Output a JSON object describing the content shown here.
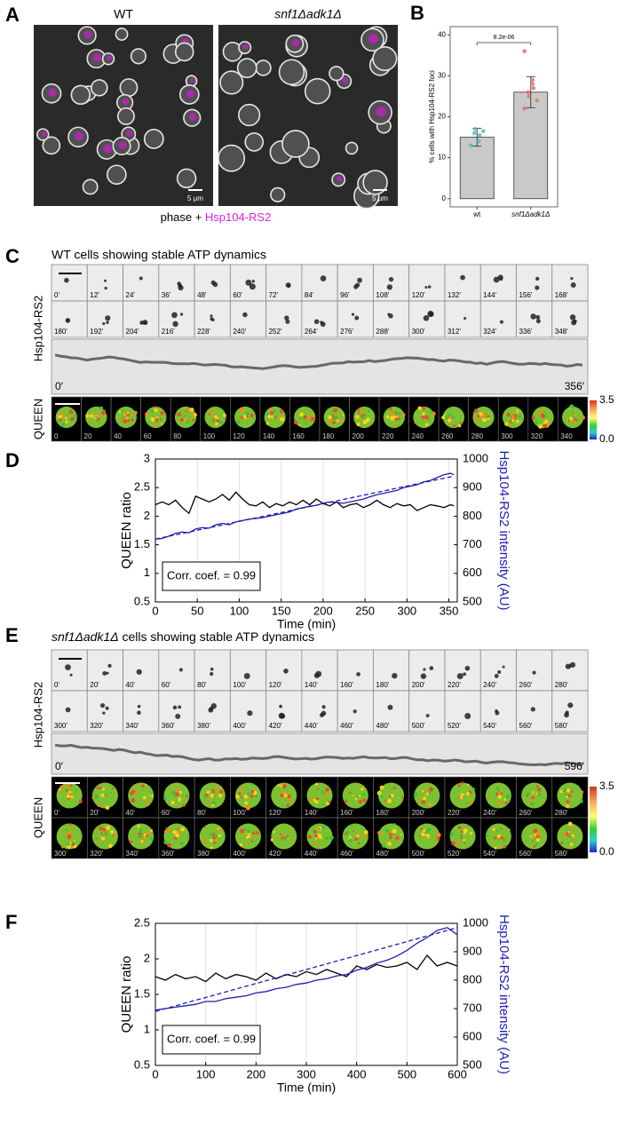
{
  "panel_labels": [
    "A",
    "B",
    "C",
    "D",
    "E",
    "F"
  ],
  "panel_a": {
    "labels": [
      "WT",
      "snf1Δadk1Δ"
    ],
    "scale_bar": "5 µm",
    "caption": "phase +",
    "caption_marker": "Hsp104-RS2"
  },
  "panel_c": {
    "title": "WT cells showing stable ATP dynamics",
    "row_labels": [
      "Hsp104-RS2",
      "QUEEN"
    ],
    "frames": [
      "0'",
      "12'",
      "24'",
      "36'",
      "48'",
      "60'",
      "72'",
      "84'",
      "96'",
      "108'",
      "120'",
      "132'",
      "144'",
      "156'",
      "168'",
      "180'",
      "192'",
      "204'",
      "216'",
      "228'",
      "240'",
      "252'",
      "264'",
      "276'",
      "288'",
      "300'",
      "312'",
      "324'",
      "336'",
      "348'"
    ],
    "kymo_start": "0′",
    "kymo_end": "356′",
    "queen_frames": [
      "0",
      "20",
      "40",
      "60",
      "80",
      "100",
      "120",
      "140",
      "160",
      "180",
      "200",
      "220",
      "240",
      "260",
      "280",
      "300",
      "320",
      "340"
    ],
    "colorbar_ticks": [
      3.5,
      {
        "value": 0,
        "label": "0.0"
      }
    ]
  },
  "panel_e": {
    "title_genotype": "snf1Δadk1Δ",
    "title_rest": " cells showing stable ATP dynamics",
    "row_labels": [
      "Hsp104-RS2",
      "QUEEN"
    ],
    "frames": [
      "0'",
      "20'",
      "40'",
      "60'",
      "80'",
      "100'",
      "120'",
      "140'",
      "160'",
      "180'",
      "200'",
      "220'",
      "240'",
      "260'",
      "280'",
      "300'",
      "320'",
      "340'",
      "360'",
      "380'",
      "400'",
      "420'",
      "440'",
      "460'",
      "480'",
      "500'",
      "520'",
      "540'",
      "560'",
      "580'"
    ],
    "kymo_start": "0′",
    "kymo_end": "596′",
    "queen_frames": [
      "0'",
      "20'",
      "40'",
      "60'",
      "80'",
      "100'",
      "120'",
      "140'",
      "160'",
      "180'",
      "200'",
      "220'",
      "240'",
      "260'",
      "280'",
      "300'",
      "320'",
      "340'",
      "360'",
      "380'",
      "400'",
      "420'",
      "440'",
      "460'",
      "480'",
      "500'",
      "520'",
      "540'",
      "560'",
      "580'"
    ],
    "colorbar_ticks": [
      3.5,
      {
        "value": 0,
        "label": "0.0"
      }
    ]
  },
  "chart_data": [
    {
      "type": "bar",
      "ylabel": "% cells with Hsp104-RS2 foci",
      "categories": [
        "wt",
        "snf1Δadk1Δ"
      ],
      "values": [
        15,
        26
      ],
      "errors": [
        2.2,
        3.8
      ],
      "points": [
        [
          13,
          14,
          15.5,
          16,
          17,
          16.5
        ],
        [
          36,
          28,
          27,
          26,
          25,
          24,
          22,
          29
        ]
      ],
      "point_colors": [
        "#5fb8b3",
        "#e07070"
      ],
      "color": "#c9c9c9",
      "annotation": "8.2e-06",
      "ylim": [
        -2,
        42
      ],
      "yticks": [
        0,
        10,
        20,
        30,
        40
      ]
    },
    {
      "type": "line",
      "xlabel": "Time (min)",
      "ylabel": "QUEEN ratio",
      "y2label": "Hsp104-RS2 intensity (AU)",
      "annotation": "Corr. coef. = 0.99",
      "grid": "x",
      "xlim": [
        0,
        360
      ],
      "xticks": [
        0,
        50,
        100,
        150,
        200,
        250,
        300,
        350
      ],
      "ylim": [
        0.5,
        3
      ],
      "yticks": [
        0.5,
        1,
        1.5,
        2,
        2.5,
        3
      ],
      "y2lim": [
        500,
        1000
      ],
      "y2ticks": [
        500,
        600,
        700,
        800,
        900,
        1000
      ],
      "x": [
        0,
        8,
        16,
        24,
        32,
        40,
        48,
        56,
        64,
        72,
        80,
        88,
        96,
        104,
        112,
        120,
        128,
        136,
        144,
        152,
        160,
        168,
        176,
        184,
        192,
        200,
        208,
        216,
        224,
        232,
        240,
        248,
        256,
        264,
        272,
        280,
        288,
        296,
        304,
        312,
        320,
        328,
        336,
        344,
        352,
        356
      ],
      "series": [
        {
          "color": "#000000",
          "values": [
            2.2,
            2.25,
            2.2,
            2.28,
            2.15,
            2.05,
            2.35,
            2.3,
            2.25,
            2.3,
            2.38,
            2.28,
            2.42,
            2.3,
            2.2,
            2.18,
            2.25,
            2.15,
            2.22,
            2.18,
            2.25,
            2.2,
            2.28,
            2.2,
            2.3,
            2.22,
            2.18,
            2.25,
            2.15,
            2.2,
            2.22,
            2.15,
            2.2,
            2.28,
            2.2,
            2.15,
            2.22,
            2.18,
            2.2,
            2.1,
            2.15,
            2.2,
            2.18,
            2.15,
            2.2,
            2.18
          ]
        },
        {
          "color": "#1f1fb4",
          "axis": "y2",
          "values": [
            720,
            722,
            730,
            740,
            745,
            742,
            755,
            760,
            758,
            770,
            775,
            770,
            780,
            785,
            790,
            792,
            795,
            800,
            805,
            810,
            815,
            825,
            830,
            835,
            838,
            845,
            850,
            848,
            845,
            850,
            855,
            860,
            868,
            875,
            880,
            885,
            890,
            900,
            905,
            910,
            920,
            925,
            935,
            945,
            950,
            945
          ]
        },
        {
          "color": "#1f1fb4",
          "axis": "y2",
          "dashed": true,
          "x": [
            0,
            356
          ],
          "values": [
            720,
            940
          ]
        }
      ]
    },
    {
      "type": "line",
      "xlabel": "Time (min)",
      "ylabel": "QUEEN ratio",
      "y2label": "Hsp104-RS2 intensity (AU)",
      "annotation": "Corr. coef. = 0.99",
      "grid": "x",
      "xlim": [
        0,
        600
      ],
      "xticks": [
        0,
        100,
        200,
        300,
        400,
        500,
        600
      ],
      "ylim": [
        0.5,
        2.5
      ],
      "yticks": [
        0.5,
        1,
        1.5,
        2,
        2.5
      ],
      "y2lim": [
        500,
        1000
      ],
      "y2ticks": [
        500,
        600,
        700,
        800,
        900,
        1000
      ],
      "x": [
        0,
        20,
        40,
        60,
        80,
        100,
        120,
        140,
        160,
        180,
        200,
        220,
        240,
        260,
        280,
        300,
        320,
        340,
        360,
        380,
        400,
        420,
        440,
        460,
        480,
        500,
        520,
        540,
        560,
        580,
        600
      ],
      "series": [
        {
          "color": "#000000",
          "values": [
            1.75,
            1.7,
            1.78,
            1.72,
            1.75,
            1.68,
            1.8,
            1.72,
            1.78,
            1.75,
            1.7,
            1.8,
            1.72,
            1.78,
            1.75,
            1.82,
            1.78,
            1.85,
            1.8,
            1.75,
            1.9,
            1.85,
            1.92,
            1.88,
            1.9,
            1.95,
            1.85,
            2.05,
            1.9,
            1.95,
            1.9
          ]
        },
        {
          "color": "#1f1fb4",
          "axis": "y2",
          "values": [
            695,
            700,
            705,
            710,
            715,
            725,
            725,
            735,
            740,
            745,
            755,
            760,
            770,
            775,
            785,
            790,
            800,
            805,
            815,
            820,
            835,
            845,
            860,
            870,
            885,
            905,
            930,
            950,
            975,
            985,
            960
          ]
        },
        {
          "color": "#1f1fb4",
          "axis": "y2",
          "dashed": true,
          "x": [
            0,
            600
          ],
          "values": [
            690,
            985
          ]
        }
      ]
    }
  ]
}
